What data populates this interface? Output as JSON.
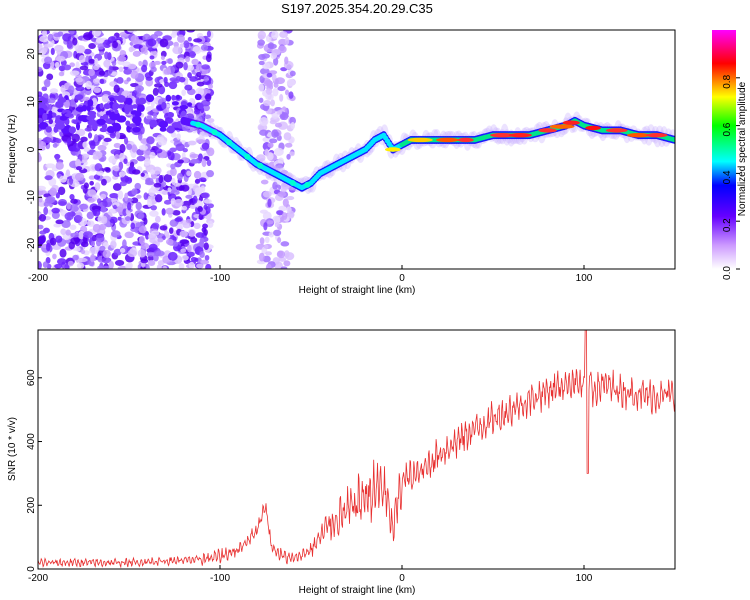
{
  "chart_data": [
    {
      "type": "heatmap",
      "title": "S197.2025.354.20.29.C35",
      "xlabel": "Height of straight line (km)",
      "ylabel": "Frequency (Hz)",
      "xlim": [
        -200,
        150
      ],
      "ylim": [
        -25,
        25
      ],
      "xticks": [
        -200,
        -100,
        0,
        100
      ],
      "yticks": [
        -20,
        -10,
        0,
        10,
        20
      ],
      "colorbar": {
        "label": "Normalized spectral amplitude",
        "range": [
          0,
          1
        ],
        "ticks": [
          "0.0",
          "0.2",
          "0.4",
          "0.6",
          "0.8"
        ],
        "colors": [
          "#ffffff",
          "#cc99ff",
          "#6600ff",
          "#0000ff",
          "#00ffff",
          "#00ff00",
          "#ffff00",
          "#ff0000",
          "#ff00ff"
        ]
      },
      "ridge": {
        "x": [
          -120,
          -110,
          -100,
          -90,
          -80,
          -70,
          -60,
          -55,
          -50,
          -45,
          -40,
          -35,
          -30,
          -25,
          -20,
          -15,
          -10,
          -5,
          0,
          5,
          10,
          20,
          30,
          40,
          50,
          60,
          70,
          80,
          90,
          95,
          100,
          110,
          120,
          130,
          140,
          150
        ],
        "y": [
          6,
          5,
          3,
          0,
          -3,
          -5,
          -7,
          -8,
          -7,
          -5,
          -4,
          -3,
          -2,
          -1,
          0,
          2,
          3,
          0,
          1,
          2,
          2,
          2,
          2,
          2,
          3,
          3,
          3,
          4,
          5,
          6,
          5,
          4,
          4,
          3,
          3,
          2
        ]
      }
    },
    {
      "type": "line",
      "xlabel": "Height of straight line (km)",
      "ylabel": "SNR (10 * v/v)",
      "xlim": [
        -200,
        150
      ],
      "ylim": [
        0,
        750
      ],
      "xticks": [
        -200,
        -100,
        0,
        100
      ],
      "yticks": [
        0,
        200,
        400,
        600
      ],
      "color": "#e83030",
      "envelope": {
        "x": [
          -200,
          -150,
          -110,
          -100,
          -90,
          -80,
          -75,
          -72,
          -70,
          -65,
          -60,
          -50,
          -45,
          -40,
          -30,
          -20,
          -10,
          -5,
          0,
          10,
          20,
          30,
          40,
          50,
          60,
          70,
          80,
          90,
          95,
          100,
          102,
          105,
          110,
          120,
          130,
          140,
          150
        ],
        "y": [
          20,
          20,
          30,
          40,
          60,
          120,
          200,
          80,
          60,
          40,
          30,
          60,
          100,
          140,
          180,
          230,
          260,
          120,
          280,
          300,
          360,
          400,
          440,
          470,
          500,
          530,
          560,
          580,
          590,
          570,
          620,
          560,
          580,
          560,
          550,
          540,
          550
        ]
      }
    }
  ]
}
